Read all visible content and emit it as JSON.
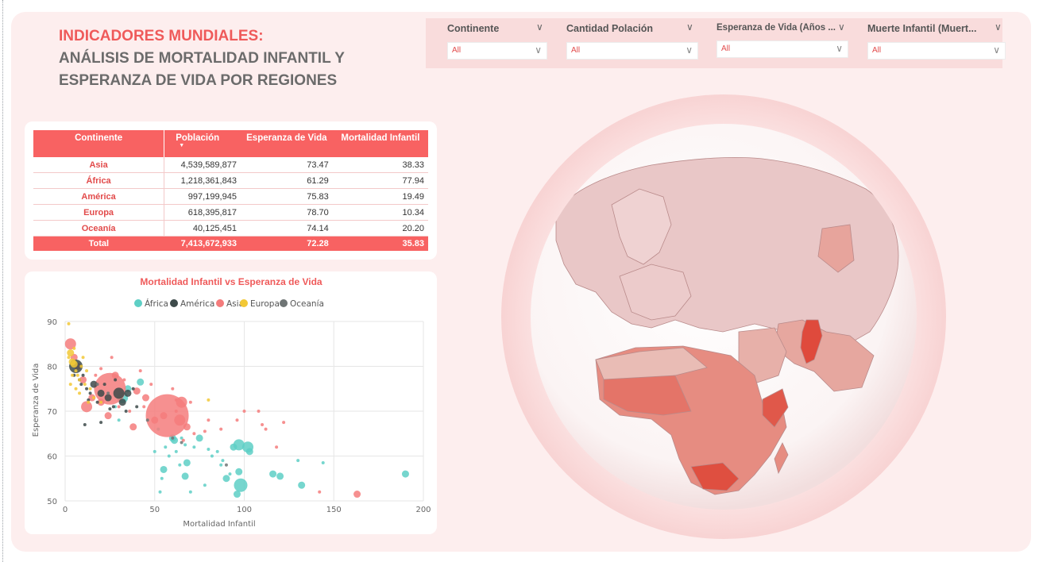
{
  "title": {
    "line1": "INDICADORES MUNDIALES:",
    "line2": "ANÁLISIS DE MORTALIDAD INFANTIL Y",
    "line3": "ESPERANZA DE VIDA POR REGIONES"
  },
  "filters": [
    {
      "label": "Continente",
      "value": "All"
    },
    {
      "label": "Cantidad Polación",
      "value": "All"
    },
    {
      "label": "Esperanza de Vida (Años ...",
      "value": "All"
    },
    {
      "label": "Muerte Infantil (Muert...",
      "value": "All"
    }
  ],
  "table": {
    "headers": [
      "Continente",
      "Población",
      "Esperanza de Vida",
      "Mortalidad Infantil"
    ],
    "rows": [
      [
        "Asia",
        "4,539,589,877",
        "73.47",
        "38.33"
      ],
      [
        "África",
        "1,218,361,843",
        "61.29",
        "77.94"
      ],
      [
        "América",
        "997,199,945",
        "75.83",
        "19.49"
      ],
      [
        "Europa",
        "618,395,817",
        "78.70",
        "10.34"
      ],
      [
        "Oceanía",
        "40,125,451",
        "74.14",
        "20.20"
      ]
    ],
    "total": [
      "Total",
      "7,413,672,933",
      "72.28",
      "35.83"
    ]
  },
  "colors": {
    "accent": "#ef5a5a",
    "Africa": "#5ecfc5",
    "America": "#3d4a4a",
    "Asia": "#f47c7c",
    "Europa": "#f2c836",
    "Oceania": "#6f7575"
  },
  "chart_data": {
    "type": "scatter",
    "title": "Mortalidad Infantil vs Esperanza de Vida",
    "xlabel": "Mortalidad Infantil",
    "ylabel": "Esperanza de Vida",
    "xlim": [
      0,
      200
    ],
    "ylim": [
      50,
      90
    ],
    "xticks": [
      "0",
      "50",
      "100",
      "150",
      "200"
    ],
    "yticks": [
      "50",
      "60",
      "70",
      "80",
      "90"
    ],
    "legend": {
      "placement": "top-center"
    },
    "series": [
      {
        "name": "África",
        "points": [
          [
            190,
            56,
            2
          ],
          [
            144,
            58.5,
            1
          ],
          [
            132,
            53.5,
            2
          ],
          [
            130,
            59,
            1
          ],
          [
            120,
            55.5,
            2
          ],
          [
            116,
            56,
            2
          ],
          [
            103,
            61,
            2
          ],
          [
            102,
            62,
            3
          ],
          [
            97,
            62.5,
            3
          ],
          [
            98,
            53.5,
            4
          ],
          [
            97,
            56.5,
            2
          ],
          [
            96,
            51.5,
            2
          ],
          [
            94,
            62,
            2
          ],
          [
            92,
            56,
            1
          ],
          [
            90,
            55,
            2
          ],
          [
            88,
            59,
            1
          ],
          [
            87,
            58,
            1
          ],
          [
            85,
            61,
            1
          ],
          [
            82,
            60,
            1
          ],
          [
            80,
            61.5,
            1
          ],
          [
            78,
            53.5,
            1
          ],
          [
            75,
            64,
            2
          ],
          [
            72,
            62,
            1
          ],
          [
            70,
            52,
            1
          ],
          [
            68,
            58.5,
            2
          ],
          [
            67,
            55.5,
            2
          ],
          [
            67,
            62.5,
            1
          ],
          [
            65,
            64,
            1
          ],
          [
            64,
            58,
            1
          ],
          [
            62,
            61,
            1
          ],
          [
            61,
            63.5,
            2
          ],
          [
            60,
            64,
            2
          ],
          [
            58,
            60,
            1
          ],
          [
            56,
            62,
            1
          ],
          [
            55,
            57,
            2
          ],
          [
            54,
            55,
            1
          ],
          [
            53,
            52,
            1
          ],
          [
            52,
            66,
            1
          ],
          [
            50,
            61,
            1
          ],
          [
            42,
            76.5,
            2
          ],
          [
            32,
            73,
            3
          ],
          [
            35,
            75,
            2
          ],
          [
            30,
            68,
            1
          ],
          [
            28,
            71,
            1
          ]
        ]
      },
      {
        "name": "América",
        "points": [
          [
            6,
            80,
            4
          ],
          [
            8,
            77,
            1
          ],
          [
            10,
            78,
            1
          ],
          [
            12,
            75,
            1
          ],
          [
            14,
            74,
            1
          ],
          [
            16,
            76,
            2
          ],
          [
            18,
            72,
            1
          ],
          [
            20,
            74,
            2
          ],
          [
            22,
            76,
            1
          ],
          [
            24,
            73,
            2
          ],
          [
            27,
            71,
            1
          ],
          [
            30,
            74,
            3
          ],
          [
            32,
            72,
            2
          ],
          [
            35,
            74,
            2
          ],
          [
            28,
            77,
            1
          ],
          [
            38,
            75,
            1
          ],
          [
            13,
            72.5,
            1
          ],
          [
            9,
            76,
            1
          ],
          [
            5,
            78,
            1
          ],
          [
            11,
            67,
            1
          ],
          [
            20,
            67.5,
            1
          ],
          [
            25,
            70.5,
            1
          ],
          [
            34,
            70,
            1
          ],
          [
            40,
            71,
            1
          ]
        ]
      },
      {
        "name": "Asia",
        "points": [
          [
            3,
            85,
            3
          ],
          [
            5,
            82,
            2
          ],
          [
            7,
            80,
            2
          ],
          [
            10,
            77,
            2
          ],
          [
            12,
            71,
            3
          ],
          [
            15,
            73,
            2
          ],
          [
            17,
            78,
            1
          ],
          [
            20,
            72,
            2
          ],
          [
            25,
            75,
            6
          ],
          [
            24,
            69,
            2
          ],
          [
            28,
            78,
            2
          ],
          [
            30,
            71,
            1
          ],
          [
            33,
            77,
            1
          ],
          [
            36,
            70,
            1
          ],
          [
            38,
            66.5,
            2
          ],
          [
            40,
            74.5,
            2
          ],
          [
            45,
            73,
            2
          ],
          [
            50,
            68,
            2
          ],
          [
            55,
            69,
            2
          ],
          [
            57,
            69,
            10
          ],
          [
            62,
            70,
            1
          ],
          [
            64,
            68,
            3
          ],
          [
            66,
            63.5,
            1
          ],
          [
            68,
            66.5,
            2
          ],
          [
            72,
            65,
            1
          ],
          [
            78,
            65.5,
            1
          ],
          [
            87,
            66,
            1
          ],
          [
            96,
            68,
            1
          ],
          [
            100,
            70,
            1
          ],
          [
            108,
            70,
            1
          ],
          [
            110,
            67,
            1
          ],
          [
            112,
            66,
            1
          ],
          [
            118,
            62,
            1
          ],
          [
            122,
            67.5,
            1
          ],
          [
            142,
            52,
            1
          ],
          [
            163,
            51.5,
            2
          ],
          [
            60,
            75,
            1
          ],
          [
            62,
            72.5,
            1
          ],
          [
            44,
            71,
            1
          ],
          [
            48,
            76,
            1
          ],
          [
            42,
            79,
            1
          ],
          [
            26,
            82,
            1
          ],
          [
            20,
            79.5,
            1
          ],
          [
            65,
            72,
            3
          ],
          [
            70,
            72,
            1
          ],
          [
            80,
            68,
            1
          ]
        ]
      },
      {
        "name": "Europa",
        "points": [
          [
            2,
            89.5,
            1
          ],
          [
            3,
            83,
            2
          ],
          [
            4,
            81,
            2
          ],
          [
            5,
            80.5,
            2
          ],
          [
            6,
            79,
            1
          ],
          [
            7,
            78,
            1
          ],
          [
            8,
            77,
            1
          ],
          [
            4,
            78,
            1
          ],
          [
            6,
            75,
            1
          ],
          [
            3,
            76,
            1
          ],
          [
            9,
            80,
            1
          ],
          [
            10,
            82,
            1
          ],
          [
            12,
            79,
            1
          ],
          [
            14,
            75,
            1
          ],
          [
            16,
            73,
            1
          ],
          [
            20,
            72,
            1
          ],
          [
            80,
            72.5,
            1
          ],
          [
            2,
            82,
            1
          ],
          [
            8,
            74,
            1
          ],
          [
            11,
            76,
            1
          ],
          [
            13,
            72,
            1
          ],
          [
            5,
            84,
            1
          ]
        ]
      },
      {
        "name": "Oceanía",
        "points": [
          [
            4,
            81,
            1
          ],
          [
            8,
            77,
            1
          ],
          [
            18,
            76,
            1
          ],
          [
            24,
            74,
            1
          ],
          [
            46,
            68,
            1
          ],
          [
            60,
            64,
            1
          ],
          [
            65,
            63,
            1
          ],
          [
            90,
            58,
            1
          ]
        ]
      }
    ]
  }
}
